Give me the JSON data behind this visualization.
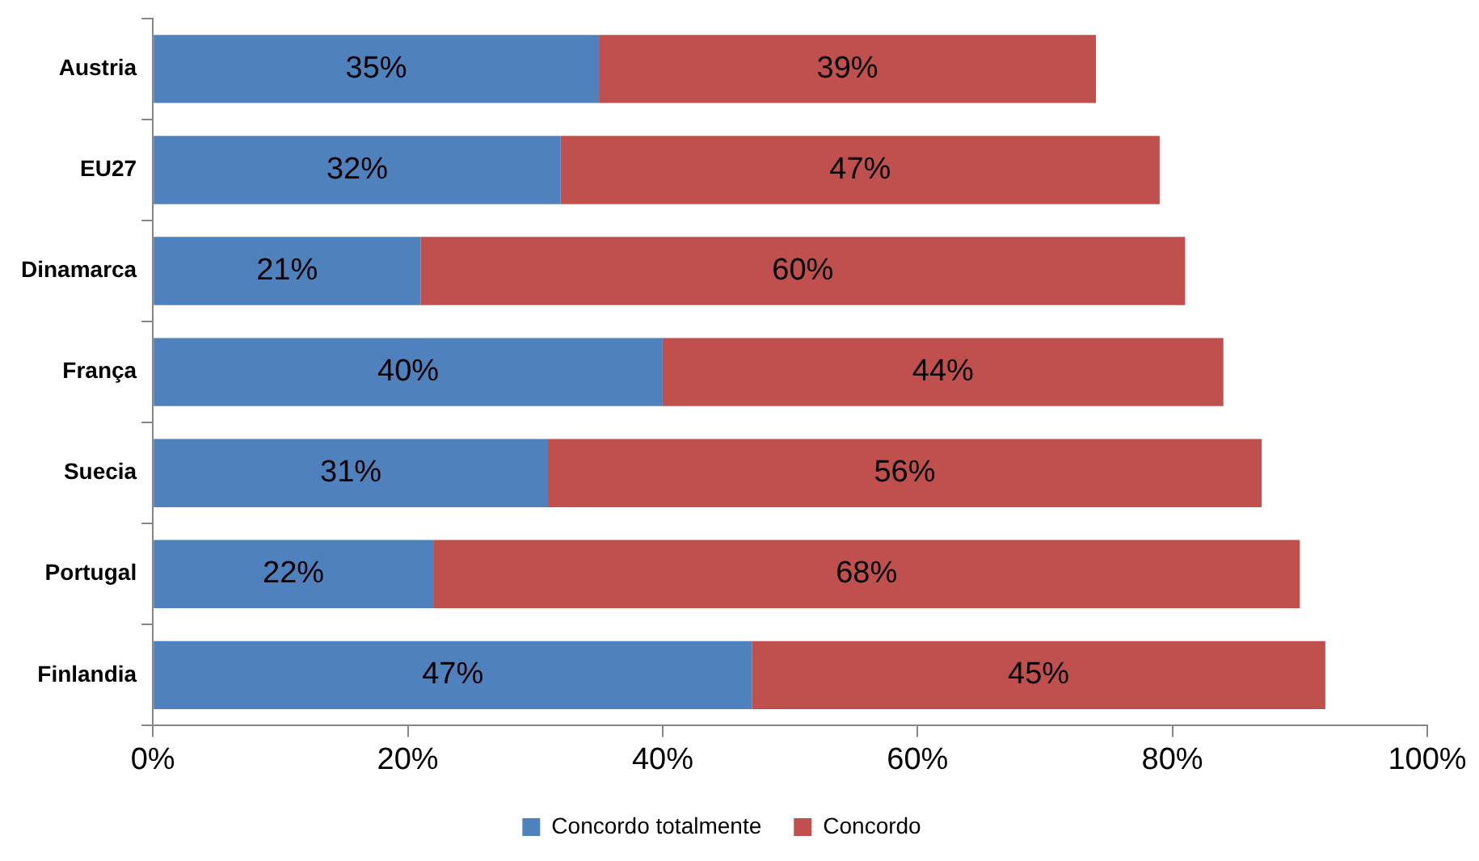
{
  "chart_data": {
    "type": "bar",
    "orientation": "horizontal",
    "stacked": true,
    "categories": [
      "Austria",
      "EU27",
      "Dinamarca",
      "França",
      "Suecia",
      "Portugal",
      "Finlandia"
    ],
    "series": [
      {
        "name": "Concordo totalmente",
        "color": "#4f81bd",
        "values": [
          35,
          32,
          21,
          40,
          31,
          22,
          47
        ],
        "value_labels": [
          "35%",
          "32%",
          "21%",
          "40%",
          "31%",
          "22%",
          "47%"
        ]
      },
      {
        "name": "Concordo",
        "color": "#c0504d",
        "values": [
          39,
          47,
          60,
          44,
          56,
          68,
          45
        ],
        "value_labels": [
          "39%",
          "47%",
          "60%",
          "44%",
          "56%",
          "68%",
          "45%"
        ]
      }
    ],
    "xlim": [
      0,
      100
    ],
    "xticks": [
      {
        "value": 0,
        "label": "0%"
      },
      {
        "value": 20,
        "label": "20%"
      },
      {
        "value": 40,
        "label": "40%"
      },
      {
        "value": 60,
        "label": "60%"
      },
      {
        "value": 80,
        "label": "80%"
      },
      {
        "value": 100,
        "label": "100%"
      }
    ],
    "grid": false,
    "legend": "bottom"
  }
}
